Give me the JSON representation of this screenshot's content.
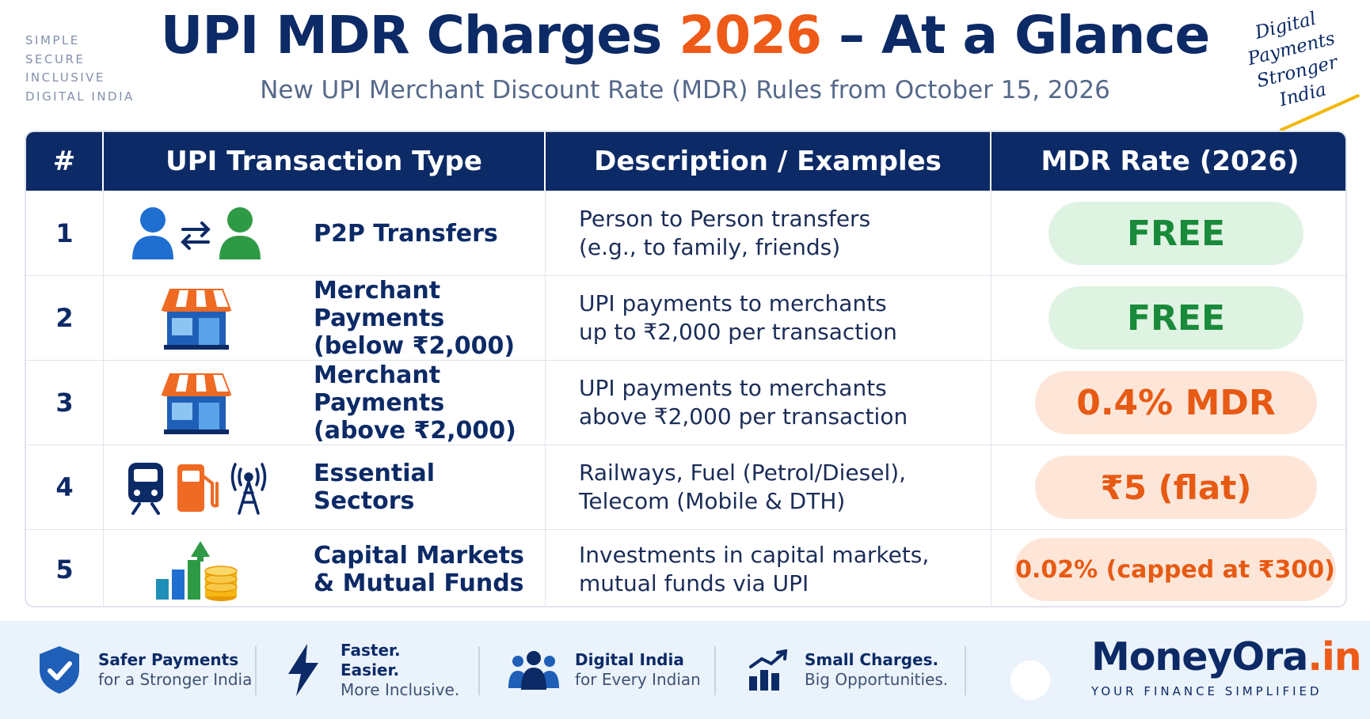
{
  "header": {
    "tagline": [
      "SIMPLE",
      "SECURE",
      "INCLUSIVE",
      "DIGITAL INDIA"
    ],
    "title_before": "UPI MDR Charges ",
    "title_accent": "2026",
    "title_after": " – At a Glance",
    "subtitle": "New UPI Merchant Discount Rate (MDR) Rules from October 15, 2026",
    "badge_lines": [
      "Digital",
      "Payments",
      "Stronger",
      "India"
    ]
  },
  "table": {
    "headers": {
      "num": "#",
      "type": "UPI Transaction Type",
      "desc": "Description / Examples",
      "mdr": "MDR Rate (2026)"
    },
    "rows": [
      {
        "num": "1",
        "icons": [
          "person-icon",
          "transfer-arrows-icon",
          "person-icon"
        ],
        "type_lines": [
          "P2P Transfers"
        ],
        "desc_lines": [
          "Person to Person transfers",
          "(e.g., to family, friends)"
        ],
        "mdr": "FREE",
        "mdr_style": "green"
      },
      {
        "num": "2",
        "icons": [
          "storefront-icon"
        ],
        "type_lines": [
          "Merchant Payments",
          "(below ₹2,000)"
        ],
        "desc_lines": [
          "UPI payments to merchants",
          "up to ₹2,000 per transaction"
        ],
        "mdr": "FREE",
        "mdr_style": "green"
      },
      {
        "num": "3",
        "icons": [
          "storefront-icon"
        ],
        "type_lines": [
          "Merchant Payments",
          "(above ₹2,000)"
        ],
        "desc_lines": [
          "UPI payments to merchants",
          "above ₹2,000 per transaction"
        ],
        "mdr": "0.4% MDR",
        "mdr_style": "orange"
      },
      {
        "num": "4",
        "icons": [
          "train-icon",
          "fuel-pump-icon",
          "telecom-tower-icon"
        ],
        "type_lines": [
          "Essential Sectors"
        ],
        "desc_lines": [
          "Railways, Fuel (Petrol/Diesel),",
          "Telecom (Mobile & DTH)"
        ],
        "mdr": "₹5 (flat)",
        "mdr_style": "orange"
      },
      {
        "num": "5",
        "icons": [
          "growth-chart-coins-icon"
        ],
        "type_lines": [
          "Capital Markets",
          "& Mutual Funds"
        ],
        "desc_lines": [
          "Investments in capital markets,",
          "mutual funds via UPI"
        ],
        "mdr": "0.02% (capped at ₹300)",
        "mdr_style": "orange"
      }
    ]
  },
  "footer": {
    "features": [
      {
        "icon": "shield-check-icon",
        "lines": [
          "Safer Payments",
          "for a Stronger India"
        ]
      },
      {
        "icon": "lightning-bolt-icon",
        "lines": [
          "Faster.",
          "Easier.",
          "More Inclusive."
        ]
      },
      {
        "icon": "people-group-icon",
        "lines": [
          "Digital India",
          "for Every Indian"
        ]
      },
      {
        "icon": "bar-chart-growth-icon",
        "lines": [
          "Small Charges.",
          "Big Opportunities."
        ]
      }
    ],
    "brand_name": "MoneyOra",
    "brand_suffix": ".in",
    "brand_tagline": "YOUR FINANCE SIMPLIFIED"
  },
  "colors": {
    "navy": "#0c2a66",
    "accent_orange": "#ee5a17",
    "free_green": "#198a3a",
    "free_bg": "#dff3e3",
    "mdr_bg": "#fde6d8",
    "footer_bg": "#eaf2fb"
  }
}
